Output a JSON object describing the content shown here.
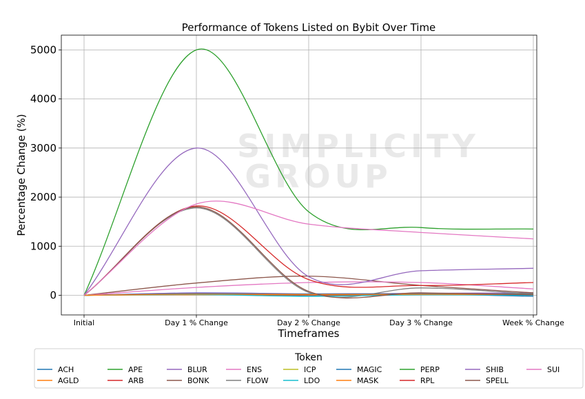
{
  "watermark": {
    "line1": "SIMPLICITY",
    "line2": "GROUP"
  },
  "chart_data": {
    "type": "line",
    "title": "Performance of Tokens Listed on Bybit Over Time",
    "xlabel": "Timeframes",
    "ylabel": "Percentage Change (%)",
    "categories": [
      "Initial",
      "Day 1 % Change",
      "Day 2 % Change",
      "Day 3 % Change",
      "Week % Change"
    ],
    "ylim": [
      -400,
      5300
    ],
    "yticks": [
      0,
      1000,
      2000,
      3000,
      4000,
      5000
    ],
    "grid": true,
    "legend": {
      "title": "Token",
      "placement": "bottom"
    },
    "series": [
      {
        "name": "ACH",
        "color": "#1f77b4",
        "values": [
          0,
          30,
          -10,
          20,
          -20
        ]
      },
      {
        "name": "AGLD",
        "color": "#ff7f0e",
        "values": [
          0,
          10,
          5,
          10,
          20
        ]
      },
      {
        "name": "APE",
        "color": "#2ca02c",
        "values": [
          0,
          40,
          20,
          30,
          30
        ]
      },
      {
        "name": "ARB",
        "color": "#d62728",
        "values": [
          0,
          20,
          10,
          15,
          25
        ]
      },
      {
        "name": "BLUR",
        "color": "#9467bd",
        "values": [
          0,
          50,
          30,
          40,
          50
        ]
      },
      {
        "name": "BONK",
        "color": "#8c564b",
        "values": [
          0,
          250,
          390,
          200,
          50
        ]
      },
      {
        "name": "ENS",
        "color": "#e377c2",
        "values": [
          0,
          160,
          260,
          260,
          130
        ]
      },
      {
        "name": "FLOW",
        "color": "#7f7f7f",
        "values": [
          0,
          1780,
          60,
          150,
          30
        ]
      },
      {
        "name": "ICP",
        "color": "#bcbd22",
        "values": [
          0,
          20,
          20,
          25,
          10
        ]
      },
      {
        "name": "LDO",
        "color": "#17becf",
        "values": [
          0,
          15,
          -20,
          10,
          0
        ]
      },
      {
        "name": "MAGIC",
        "color": "#1f77b4",
        "values": [
          0,
          35,
          25,
          30,
          20
        ]
      },
      {
        "name": "MASK",
        "color": "#ff7f0e",
        "values": [
          0,
          25,
          15,
          20,
          15
        ]
      },
      {
        "name": "PERP",
        "color": "#2ca02c",
        "values": [
          0,
          5000,
          1700,
          1380,
          1350
        ]
      },
      {
        "name": "RPL",
        "color": "#d62728",
        "values": [
          0,
          1820,
          320,
          200,
          260
        ]
      },
      {
        "name": "SHIB",
        "color": "#9467bd",
        "values": [
          0,
          3000,
          380,
          500,
          550
        ]
      },
      {
        "name": "SPELL",
        "color": "#8c564b",
        "values": [
          0,
          1800,
          80,
          50,
          10
        ]
      },
      {
        "name": "SUI",
        "color": "#e377c2",
        "values": [
          0,
          1860,
          1450,
          1280,
          1150
        ]
      }
    ]
  }
}
